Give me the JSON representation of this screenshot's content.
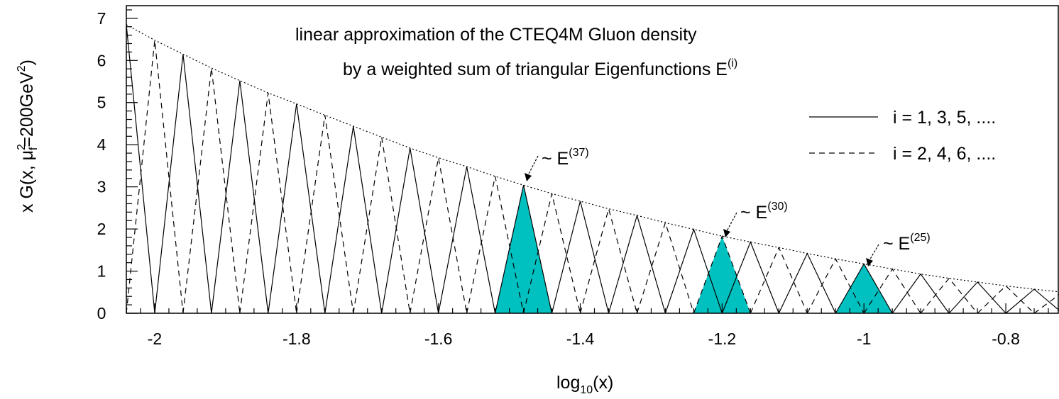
{
  "chart_data": {
    "type": "line",
    "title_line1": "linear approximation of the CTEQ4M Gluon density",
    "title_line2": "by a weighted sum of triangular Eigenfunctions  E",
    "title_sup": "(i)",
    "xlabel_main": "log",
    "xlabel_sub": "10",
    "xlabel_tail": "(x)",
    "ylabel_pre": "x G(x, μ",
    "ylabel_sup": "2",
    "ylabel_sub": "f",
    "ylabel_mid": "=200GeV",
    "ylabel_sup2": "2",
    "ylabel_post": ")",
    "xlim": [
      -2.04,
      -0.725
    ],
    "ylim": [
      0,
      7.3
    ],
    "x_ticks": [
      -2,
      -1.8,
      -1.6,
      -1.4,
      -1.2,
      -1,
      -0.8
    ],
    "x_tick_labels": [
      "-2",
      "-1.8",
      "-1.6",
      "-1.4",
      "-1.2",
      "-1",
      "-0.8"
    ],
    "y_ticks": [
      0,
      1,
      2,
      3,
      4,
      5,
      6,
      7
    ],
    "y_tick_labels": [
      "0",
      "1",
      "2",
      "3",
      "4",
      "5",
      "6",
      "7"
    ],
    "node_spacing": 0.04,
    "first_node_x": -2.04,
    "node_heights": [
      6.85,
      6.48,
      6.15,
      5.82,
      5.52,
      5.23,
      4.97,
      4.7,
      4.44,
      4.18,
      3.92,
      3.69,
      3.48,
      3.25,
      3.04,
      2.84,
      2.66,
      2.48,
      2.32,
      2.15,
      1.99,
      1.83,
      1.69,
      1.56,
      1.42,
      1.29,
      1.17,
      1.05,
      0.93,
      0.83,
      0.74,
      0.65,
      0.57,
      0.5
    ],
    "series": [
      {
        "name": "i = 1, 3, 5, ....",
        "style": "solid"
      },
      {
        "name": "i = 2, 4, 6, ....",
        "style": "dashed"
      }
    ],
    "envelope_style": "dotted",
    "highlighted": [
      {
        "label": "~ E",
        "sup": "(37)",
        "peak_x": -1.48,
        "color": "#00c0c0"
      },
      {
        "label": "~ E",
        "sup": "(30)",
        "peak_x": -1.2,
        "color": "#00c0c0"
      },
      {
        "label": "~ E",
        "sup": "(25)",
        "peak_x": -1.0,
        "color": "#00c0c0"
      }
    ],
    "legend_position": "top-right",
    "grid": false
  }
}
